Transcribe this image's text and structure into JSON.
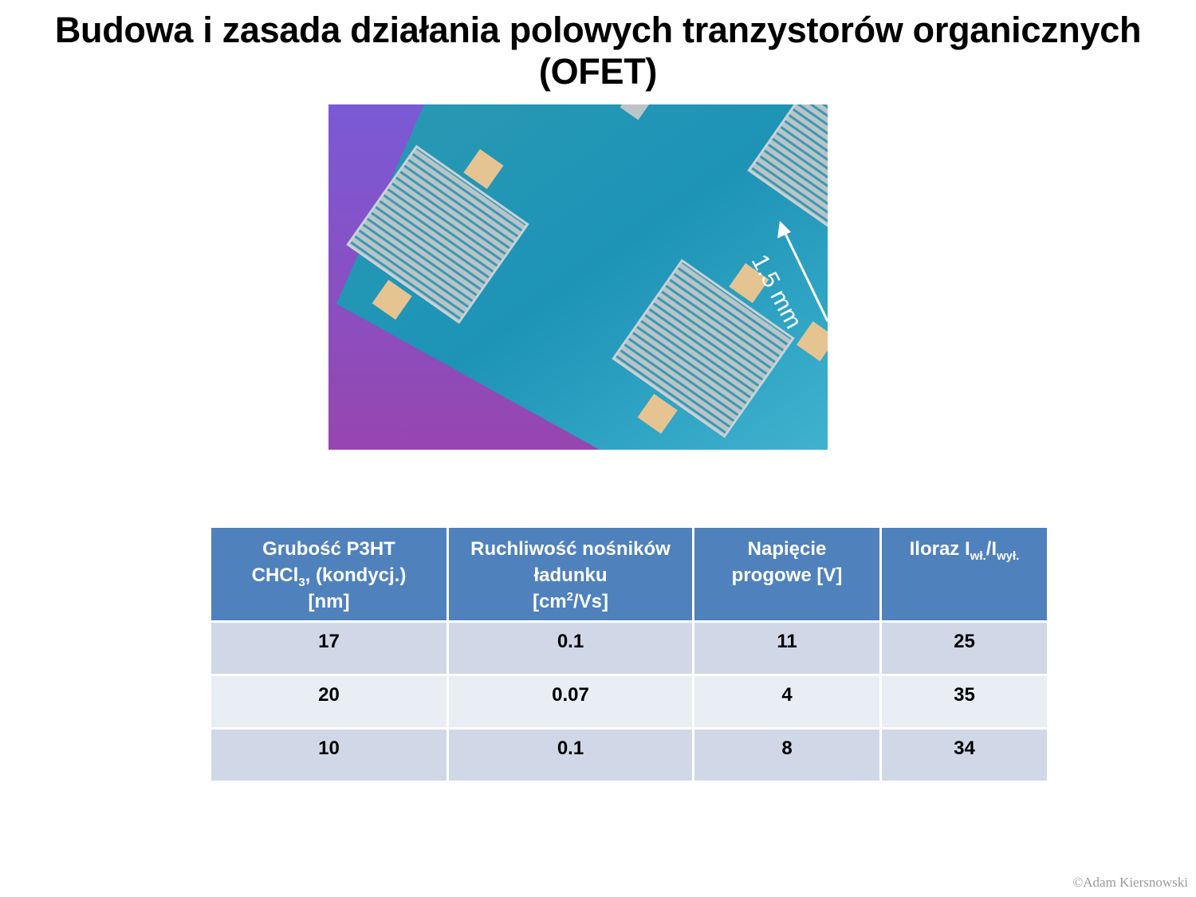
{
  "title": "Budowa i zasada działania polowych tranzystorów organicznych (OFET)",
  "photo": {
    "scale_label": "1.5 mm"
  },
  "table": {
    "headers": [
      {
        "line1": "Grubość P3HT",
        "line2_main": "CHCl",
        "line2_sub": "3",
        "line2_rest": ", (kondycj.)",
        "line3": "[nm]"
      },
      {
        "line1": "Ruchliwość nośników",
        "line2": "ładunku",
        "line3_main": "[cm",
        "line3_sup": "2",
        "line3_rest": "/Vs]"
      },
      {
        "line1": "Napięcie",
        "line2": "progowe [V]"
      },
      {
        "main": "Iloraz I",
        "sub1": "wł.",
        "slash": "/I",
        "sub2": "wył."
      }
    ],
    "rows": [
      [
        "17",
        "0.1",
        "11",
        "25"
      ],
      [
        "20",
        "0.07",
        "4",
        "35"
      ],
      [
        "10",
        "0.1",
        "8",
        "34"
      ]
    ]
  },
  "copyright": "©Adam Kiersnowski"
}
